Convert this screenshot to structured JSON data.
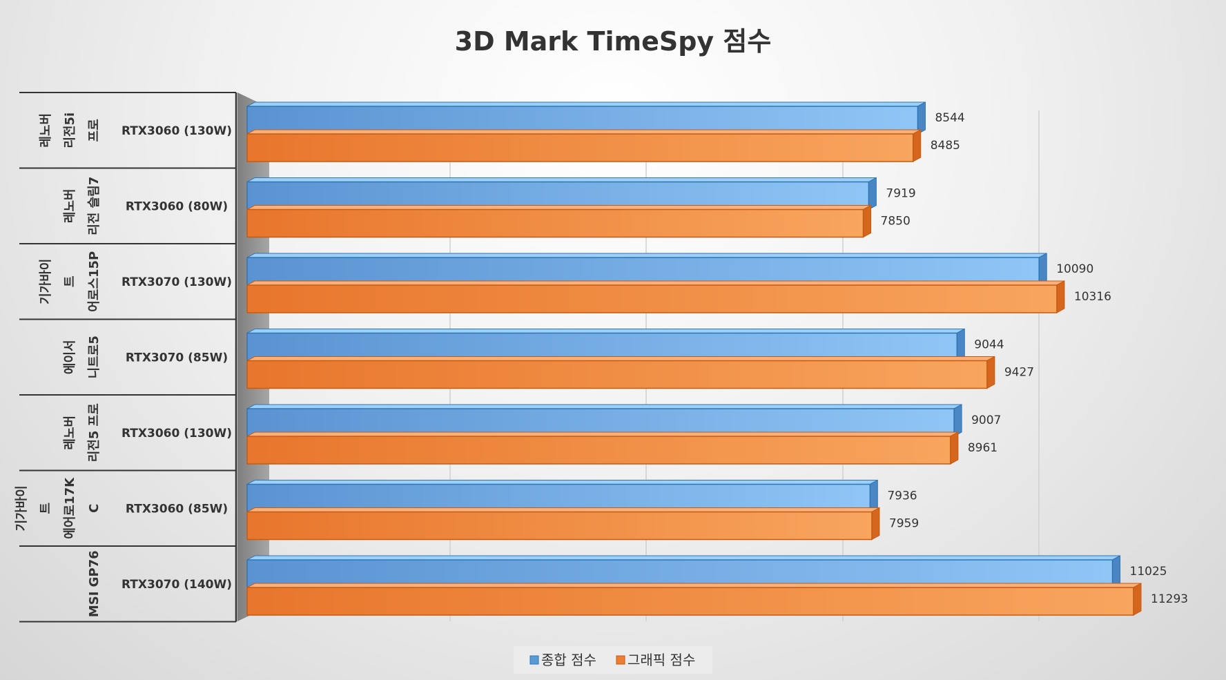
{
  "chart_data": {
    "type": "bar",
    "orientation": "horizontal",
    "title": "3D Mark TimeSpy  점수",
    "categories": [
      {
        "group": [
          "레노버",
          "리전5i",
          "프로"
        ],
        "gpu": "RTX3060 (130W)"
      },
      {
        "group": [
          "레노버",
          "리전 슬림7"
        ],
        "gpu": "RTX3060 (80W)"
      },
      {
        "group": [
          "기가바이",
          "트",
          "어로스15P"
        ],
        "gpu": "RTX3070 (130W)"
      },
      {
        "group": [
          "에이서",
          "니트로5"
        ],
        "gpu": "RTX3070 (85W)"
      },
      {
        "group": [
          "레노버",
          "리전5 프로"
        ],
        "gpu": "RTX3060 (130W)"
      },
      {
        "group": [
          "기가바이",
          "트",
          "에어로17K",
          "C"
        ],
        "gpu": "RTX3060 (85W)"
      },
      {
        "group": [
          "MSI GP76"
        ],
        "gpu": "RTX3070 (140W)"
      }
    ],
    "series": [
      {
        "name": "종합 점수",
        "color": "#5b9bd5",
        "values": [
          8544,
          7919,
          10090,
          9044,
          9007,
          7936,
          11025
        ]
      },
      {
        "name": "그래픽 점수",
        "color": "#ed7d31",
        "values": [
          8485,
          7850,
          10316,
          9427,
          8961,
          7959,
          11293
        ]
      }
    ],
    "xlim": [
      0,
      12000
    ],
    "grid": true,
    "legend_position": "bottom"
  }
}
